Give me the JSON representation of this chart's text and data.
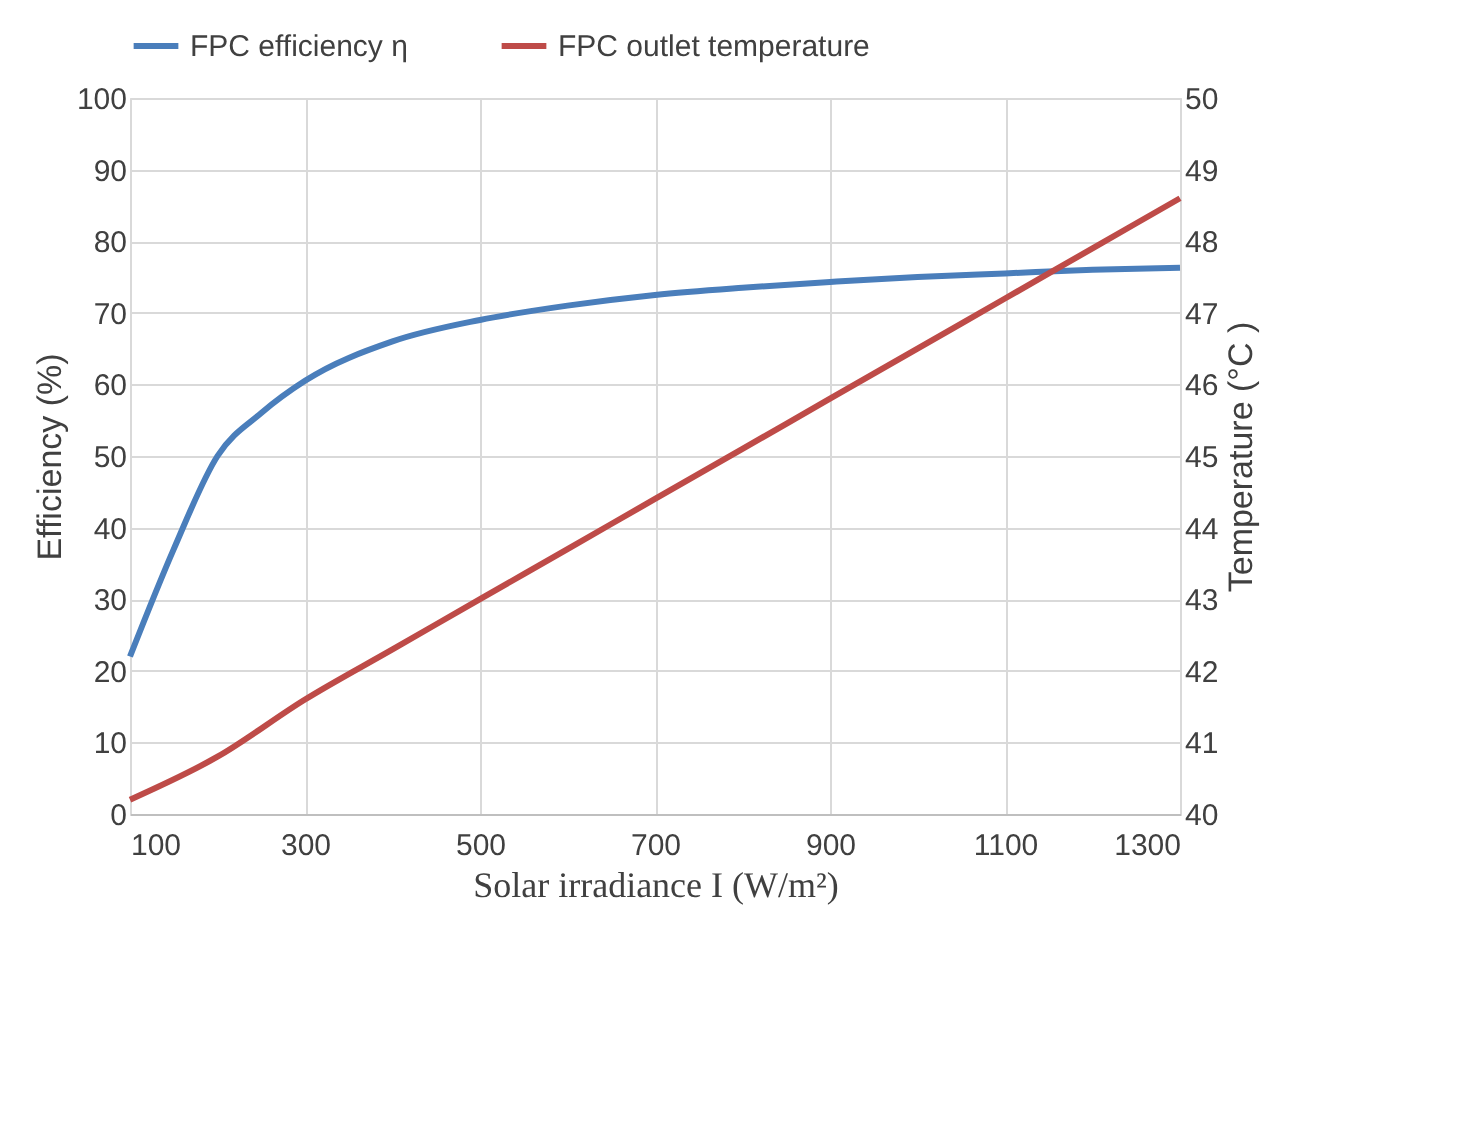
{
  "chart_data": {
    "type": "line",
    "xlabel": "Solar irradiance I (W/m²)",
    "ylabel": "Efficiency (%)",
    "y2label": "Temperature (°C )",
    "x": [
      100,
      150,
      200,
      250,
      300,
      400,
      500,
      600,
      700,
      800,
      900,
      1000,
      1100,
      1200,
      1300
    ],
    "series": [
      {
        "name": "FPC efficiency η",
        "color": "#4a7ebb",
        "values": [
          22,
          37,
          50,
          56,
          60.5,
          66,
          69,
          71,
          72.5,
          73.5,
          74.3,
          75,
          75.5,
          76,
          76.3
        ]
      },
      {
        "name": "FPC outlet temperature",
        "color": "#be4b48",
        "axis": "y2",
        "x": [
          100,
          200,
          300,
          400,
          500,
          600,
          700,
          800,
          900,
          1000,
          1100,
          1200,
          1300
        ],
        "values": [
          40.2,
          40.8,
          41.6,
          42.3,
          43.0,
          43.7,
          44.4,
          45.1,
          45.8,
          46.5,
          47.2,
          47.9,
          48.6
        ]
      }
    ],
    "xlim": [
      100,
      1300
    ],
    "xticks": [
      100,
      300,
      500,
      700,
      900,
      1100,
      1300
    ],
    "ylim": [
      0,
      100
    ],
    "yticks": [
      0,
      10,
      20,
      30,
      40,
      50,
      60,
      70,
      80,
      90,
      100
    ],
    "y2lim": [
      40,
      50
    ],
    "y2ticks": [
      40,
      41,
      42,
      43,
      44,
      45,
      46,
      47,
      48,
      49,
      50
    ],
    "grid": true,
    "legend": "top",
    "marker": "none",
    "line_style": "solid"
  }
}
